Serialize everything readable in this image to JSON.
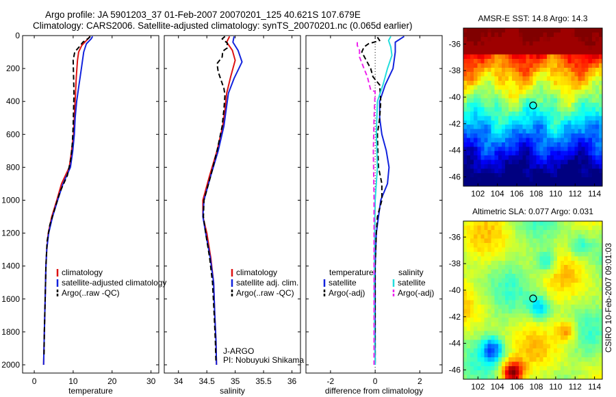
{
  "title_line1": "Argo profile: JA 5901203_37 01-Feb-2007 20070201_125 40.621S 107.679E",
  "title_line2": "Climatology: CARS2006. Satellite-adjusted climatology: synTS_20070201.nc (0.065d earlier)",
  "side_label": "CSIRO 10-Feb-2007 09:01:03",
  "colors": {
    "red": "#dd1111",
    "blue": "#1122dd",
    "black": "#000000",
    "cyan": "#22dddd",
    "magenta": "#ee22ee"
  },
  "chart_data": [
    {
      "type": "line",
      "xlabel": "temperature",
      "x_ticks": [
        "0",
        "10",
        "20",
        "30"
      ],
      "xlim": [
        -3,
        32
      ],
      "ylim": [
        0,
        2050
      ],
      "y_reversed": true,
      "y_ticks": [
        "0",
        "200",
        "400",
        "600",
        "800",
        "1000",
        "1200",
        "1400",
        "1600",
        "1800",
        "2000"
      ],
      "legend": [
        "climatology",
        "satellite-adjusted climatology",
        "Argo(..raw -QC)"
      ],
      "series": [
        {
          "name": "climatology",
          "color": "red",
          "dash": "solid",
          "points": [
            [
              14.3,
              5
            ],
            [
              13.8,
              20
            ],
            [
              12.2,
              60
            ],
            [
              11.4,
              100
            ],
            [
              11.1,
              150
            ],
            [
              10.8,
              250
            ],
            [
              10.6,
              350
            ],
            [
              10.3,
              500
            ],
            [
              10.1,
              600
            ],
            [
              9.6,
              700
            ],
            [
              9.0,
              800
            ],
            [
              7.0,
              900
            ],
            [
              5.8,
              1000
            ],
            [
              4.5,
              1100
            ],
            [
              3.6,
              1200
            ],
            [
              3.2,
              1300
            ],
            [
              3.0,
              1400
            ],
            [
              2.8,
              1600
            ],
            [
              2.6,
              1800
            ],
            [
              2.4,
              2000
            ]
          ]
        },
        {
          "name": "satellite-adjusted climatology",
          "color": "blue",
          "dash": "solid",
          "points": [
            [
              15.0,
              5
            ],
            [
              14.6,
              20
            ],
            [
              13.4,
              50
            ],
            [
              12.7,
              100
            ],
            [
              12.1,
              200
            ],
            [
              11.5,
              300
            ],
            [
              10.9,
              400
            ],
            [
              10.5,
              500
            ],
            [
              10.3,
              600
            ],
            [
              9.9,
              700
            ],
            [
              9.3,
              800
            ],
            [
              7.4,
              900
            ],
            [
              6.0,
              1000
            ],
            [
              4.7,
              1100
            ],
            [
              3.7,
              1200
            ],
            [
              3.2,
              1300
            ],
            [
              3.0,
              1400
            ],
            [
              2.8,
              1600
            ],
            [
              2.6,
              1800
            ],
            [
              2.4,
              2000
            ]
          ]
        },
        {
          "name": "Argo(..raw -QC)",
          "color": "black",
          "dash": "dash",
          "points": [
            [
              14.4,
              5
            ],
            [
              14.0,
              15
            ],
            [
              12.5,
              40
            ],
            [
              11.5,
              70
            ],
            [
              10.4,
              100
            ],
            [
              10.0,
              150
            ],
            [
              10.1,
              250
            ],
            [
              10.2,
              350
            ],
            [
              10.1,
              450
            ],
            [
              10.0,
              550
            ],
            [
              9.8,
              650
            ],
            [
              9.4,
              750
            ],
            [
              8.5,
              850
            ],
            [
              6.6,
              950
            ],
            [
              5.3,
              1050
            ],
            [
              4.0,
              1150
            ],
            [
              3.3,
              1250
            ],
            [
              3.0,
              1400
            ],
            [
              2.8,
              1600
            ],
            [
              2.6,
              1800
            ],
            [
              2.5,
              1950
            ]
          ]
        }
      ]
    },
    {
      "type": "line",
      "xlabel": "salinity",
      "x_ticks": [
        "34",
        "34.5",
        "35",
        "35.5",
        "36"
      ],
      "x_tick_values": [
        34,
        34.5,
        35,
        35.5,
        36
      ],
      "xlim": [
        33.75,
        36.15
      ],
      "ylim": [
        0,
        2050
      ],
      "y_reversed": true,
      "legend": [
        "climatology",
        "satellite adj. clim.",
        "Argo(..raw -QC)"
      ],
      "annotation": [
        "J-ARGO",
        "PI: Nobuyuki Shikama"
      ],
      "series": [
        {
          "name": "climatology",
          "color": "red",
          "dash": "solid",
          "points": [
            [
              34.9,
              5
            ],
            [
              34.85,
              40
            ],
            [
              34.95,
              90
            ],
            [
              35.0,
              150
            ],
            [
              34.92,
              250
            ],
            [
              34.85,
              350
            ],
            [
              34.82,
              450
            ],
            [
              34.78,
              550
            ],
            [
              34.68,
              700
            ],
            [
              34.55,
              850
            ],
            [
              34.43,
              1000
            ],
            [
              34.43,
              1100
            ],
            [
              34.5,
              1200
            ],
            [
              34.57,
              1350
            ],
            [
              34.62,
              1500
            ],
            [
              34.64,
              1700
            ],
            [
              34.66,
              1850
            ],
            [
              34.67,
              2000
            ]
          ]
        },
        {
          "name": "satellite adj. clim.",
          "color": "blue",
          "dash": "solid",
          "points": [
            [
              34.98,
              5
            ],
            [
              34.96,
              40
            ],
            [
              35.05,
              90
            ],
            [
              35.12,
              160
            ],
            [
              34.98,
              260
            ],
            [
              34.88,
              350
            ],
            [
              34.84,
              450
            ],
            [
              34.8,
              550
            ],
            [
              34.7,
              700
            ],
            [
              34.57,
              850
            ],
            [
              34.45,
              1000
            ],
            [
              34.43,
              1100
            ],
            [
              34.48,
              1200
            ],
            [
              34.56,
              1350
            ],
            [
              34.62,
              1500
            ],
            [
              34.64,
              1700
            ],
            [
              34.66,
              1850
            ],
            [
              34.67,
              2000
            ]
          ]
        },
        {
          "name": "Argo(..raw -QC)",
          "color": "black",
          "dash": "dash",
          "points": [
            [
              34.82,
              5
            ],
            [
              34.77,
              20
            ],
            [
              34.86,
              45
            ],
            [
              34.86,
              75
            ],
            [
              34.78,
              95
            ],
            [
              34.77,
              130
            ],
            [
              34.68,
              170
            ],
            [
              34.7,
              220
            ],
            [
              34.75,
              270
            ],
            [
              34.8,
              320
            ],
            [
              34.82,
              360
            ],
            [
              34.8,
              450
            ],
            [
              34.77,
              550
            ],
            [
              34.68,
              700
            ],
            [
              34.57,
              850
            ],
            [
              34.45,
              1000
            ],
            [
              34.44,
              1100
            ],
            [
              34.48,
              1200
            ],
            [
              34.55,
              1350
            ],
            [
              34.6,
              1500
            ],
            [
              34.63,
              1700
            ],
            [
              34.65,
              1850
            ],
            [
              34.66,
              1980
            ]
          ]
        }
      ]
    },
    {
      "type": "line",
      "xlabel": "difference from climatology",
      "x_ticks": [
        "-2",
        "0",
        "2"
      ],
      "x_tick_values": [
        -2,
        0,
        2
      ],
      "xlim": [
        -3.1,
        3.0
      ],
      "ylim": [
        0,
        2050
      ],
      "y_reversed": true,
      "legend_left": [
        "temperature",
        "satellite",
        "Argo(-adj)"
      ],
      "legend_right": [
        "salinity",
        "satellite",
        "Argo(-adj)"
      ],
      "series": [
        {
          "name": "temperature satellite",
          "color": "blue",
          "dash": "solid",
          "points": [
            [
              1.3,
              5
            ],
            [
              0.9,
              40
            ],
            [
              0.9,
              100
            ],
            [
              0.8,
              200
            ],
            [
              0.45,
              300
            ],
            [
              0.2,
              400
            ],
            [
              0.2,
              500
            ],
            [
              0.3,
              600
            ],
            [
              0.5,
              700
            ],
            [
              0.62,
              800
            ],
            [
              0.55,
              900
            ],
            [
              0.25,
              1000
            ],
            [
              0.15,
              1100
            ],
            [
              0.05,
              1200
            ],
            [
              0,
              1400
            ],
            [
              0,
              2000
            ]
          ]
        },
        {
          "name": "temperature Argo(-adj)",
          "color": "black",
          "dash": "dash",
          "points": [
            [
              0.1,
              10
            ],
            [
              0.2,
              30
            ],
            [
              -0.3,
              50
            ],
            [
              -0.5,
              70
            ],
            [
              -0.6,
              100
            ],
            [
              -0.4,
              150
            ],
            [
              -0.2,
              200
            ],
            [
              -0.1,
              250
            ],
            [
              0.2,
              300
            ],
            [
              0.25,
              400
            ],
            [
              0.2,
              500
            ],
            [
              0.1,
              600
            ],
            [
              0.12,
              700
            ],
            [
              0.15,
              800
            ],
            [
              0.3,
              900
            ],
            [
              0.3,
              1000
            ],
            [
              0.1,
              1100
            ],
            [
              0.05,
              1200
            ],
            [
              0,
              1400
            ],
            [
              0,
              2000
            ]
          ]
        },
        {
          "name": "salinity satellite",
          "color": "cyan",
          "dash": "solid",
          "points": [
            [
              0.7,
              5
            ],
            [
              0.6,
              30
            ],
            [
              0.7,
              70
            ],
            [
              0.75,
              120
            ],
            [
              0.55,
              200
            ],
            [
              0.35,
              300
            ],
            [
              0.1,
              400
            ],
            [
              0.05,
              600
            ],
            [
              0.1,
              800
            ],
            [
              0.0,
              1000
            ],
            [
              -0.02,
              1200
            ],
            [
              -0.04,
              1500
            ],
            [
              -0.03,
              1800
            ],
            [
              0,
              2000
            ]
          ]
        },
        {
          "name": "salinity Argo(-adj)",
          "color": "magenta",
          "dash": "dash",
          "points": [
            [
              -0.8,
              40
            ],
            [
              -0.8,
              60
            ],
            [
              -0.7,
              90
            ],
            [
              -0.7,
              130
            ],
            [
              -0.5,
              200
            ],
            [
              -0.35,
              250
            ],
            [
              -0.2,
              330
            ],
            [
              0.0,
              340
            ],
            [
              -0.05,
              500
            ],
            [
              -0.08,
              700
            ],
            [
              -0.05,
              1000
            ],
            [
              -0.05,
              1300
            ],
            [
              -0.05,
              1600
            ],
            [
              -0.05,
              1800
            ],
            [
              -0.05,
              2000
            ]
          ]
        }
      ]
    }
  ],
  "maps": [
    {
      "title": "AMSR-E SST: 14.8 Argo: 14.3",
      "x_ticks": [
        "102",
        "104",
        "106",
        "108",
        "110",
        "112",
        "114"
      ],
      "y_ticks": [
        "-36",
        "-38",
        "-40",
        "-42",
        "-44",
        "-46"
      ],
      "lon_range": [
        100.5,
        114.8
      ],
      "lat_range": [
        -46.7,
        -34.8
      ],
      "marker": [
        107.679,
        -40.621
      ]
    },
    {
      "title": "Altimetric SLA: 0.077 Argo: 0.031",
      "x_ticks": [
        "102",
        "104",
        "106",
        "108",
        "110",
        "112",
        "114"
      ],
      "y_ticks": [
        "-36",
        "-38",
        "-40",
        "-42",
        "-44",
        "-46"
      ],
      "lon_range": [
        100.5,
        114.8
      ],
      "lat_range": [
        -46.7,
        -34.8
      ],
      "marker": [
        107.679,
        -40.621
      ]
    }
  ]
}
